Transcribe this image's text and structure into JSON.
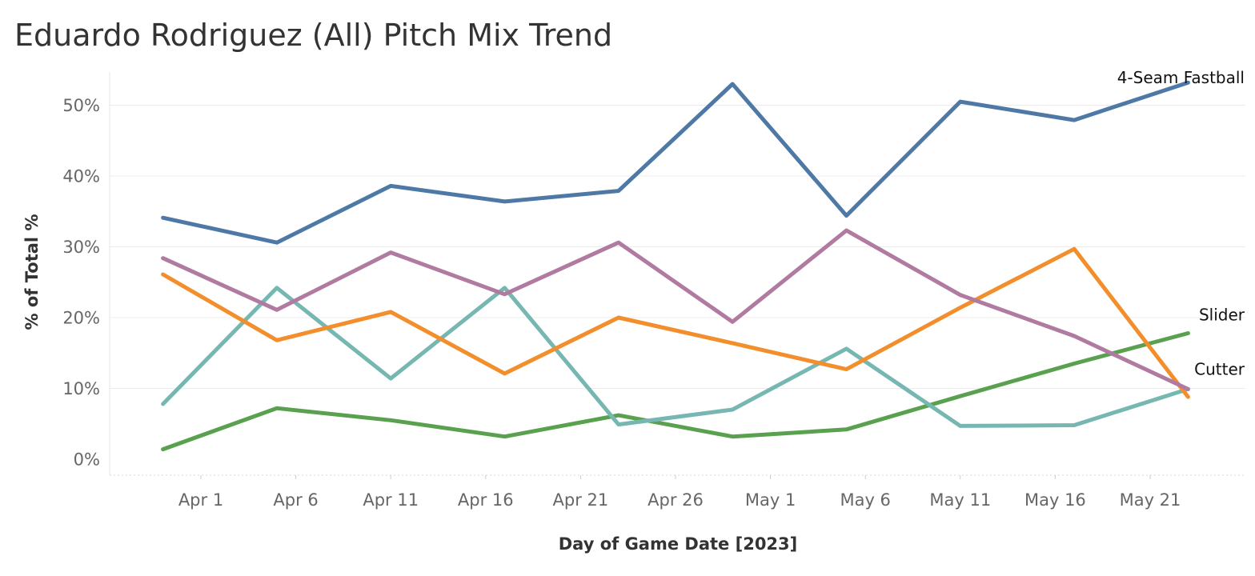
{
  "chart_data": {
    "type": "line",
    "title": "Eduardo Rodriguez (All) Pitch Mix Trend",
    "xlabel": "Day of Game Date [2023]",
    "ylabel": "% of Total %",
    "x_tick_labels": [
      "Apr 1",
      "Apr 6",
      "Apr 11",
      "Apr 16",
      "Apr 21",
      "Apr 26",
      "May 1",
      "May 6",
      "May 11",
      "May 16",
      "May 21"
    ],
    "y_tick_labels": [
      "0%",
      "10%",
      "20%",
      "30%",
      "40%",
      "50%"
    ],
    "ylim": [
      -2,
      55
    ],
    "x": [
      "2023-03-30",
      "2023-04-05",
      "2023-04-11",
      "2023-04-17",
      "2023-04-23",
      "2023-04-29",
      "2023-05-05",
      "2023-05-11",
      "2023-05-17",
      "2023-05-23"
    ],
    "series": [
      {
        "name": "4-Seam Fastball",
        "color": "#4e79a7",
        "values": [
          34.1,
          30.6,
          38.6,
          36.4,
          37.9,
          53.0,
          34.4,
          50.5,
          47.9,
          53.2
        ]
      },
      {
        "name": "",
        "color": "#b07aa1",
        "values": [
          28.4,
          21.1,
          29.2,
          23.3,
          30.6,
          19.4,
          32.3,
          23.2,
          17.4,
          9.9
        ]
      },
      {
        "name": "",
        "color": "#f28e2b",
        "values": [
          26.1,
          16.8,
          20.8,
          12.1,
          20.0,
          16.4,
          12.7,
          21.4,
          29.7,
          8.8
        ]
      },
      {
        "name": "Cutter",
        "color": "#76b7b2",
        "values": [
          7.8,
          24.2,
          11.4,
          24.2,
          4.9,
          7.0,
          15.6,
          4.7,
          4.8,
          9.9
        ]
      },
      {
        "name": "Slider",
        "color": "#59a14f",
        "values": [
          1.4,
          7.2,
          5.5,
          3.2,
          6.2,
          3.2,
          4.2,
          8.9,
          13.5,
          17.8
        ]
      }
    ],
    "grid": "horizontal",
    "legend": "inline labels at line ends"
  }
}
